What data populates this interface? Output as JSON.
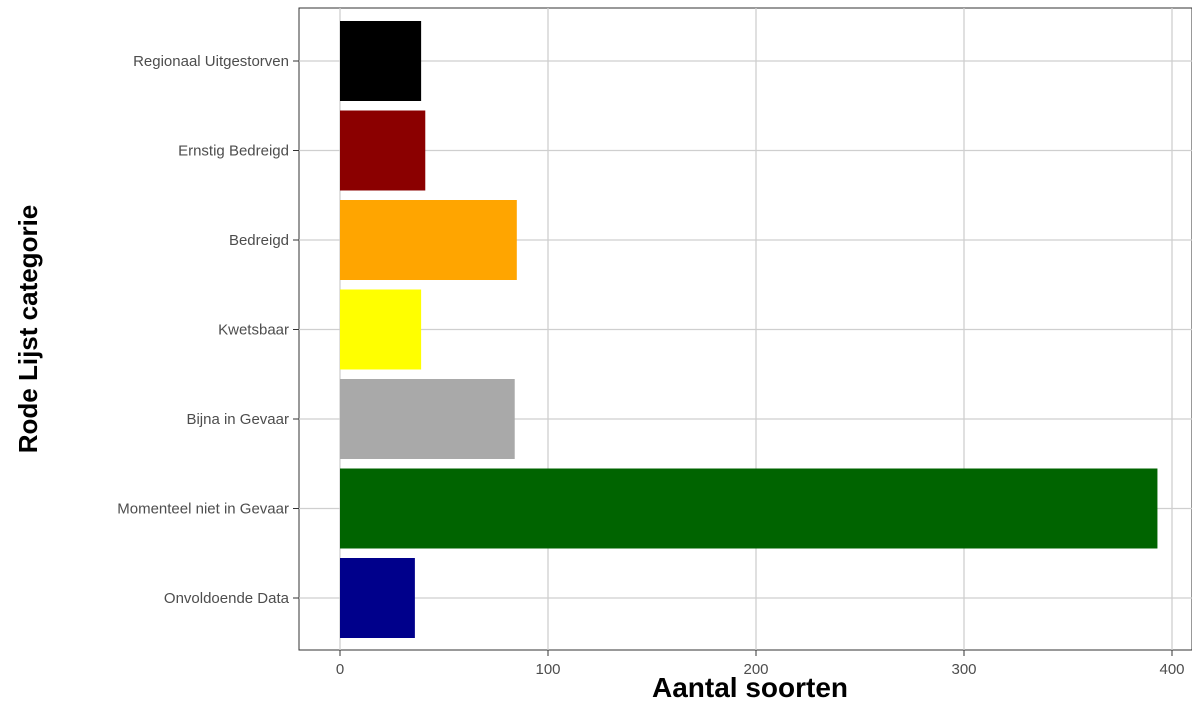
{
  "chart_data": {
    "type": "bar",
    "orientation": "horizontal",
    "xlabel": "Aantal soorten",
    "ylabel": "Rode Lijst categorie",
    "xlim": [
      -20,
      402
    ],
    "xticks": [
      0,
      100,
      200,
      300,
      400
    ],
    "grid": true,
    "categories": [
      "Regionaal Uitgestorven",
      "Ernstig Bedreigd",
      "Bedreigd",
      "Kwetsbaar",
      "Bijna in Gevaar",
      "Momenteel niet in Gevaar",
      "Onvoldoende Data"
    ],
    "values": [
      39,
      41,
      85,
      39,
      84,
      393,
      36
    ],
    "colors": [
      "#000000",
      "#8b0000",
      "#ffa500",
      "#ffff00",
      "#a9a9a9",
      "#006400",
      "#00008b"
    ]
  }
}
